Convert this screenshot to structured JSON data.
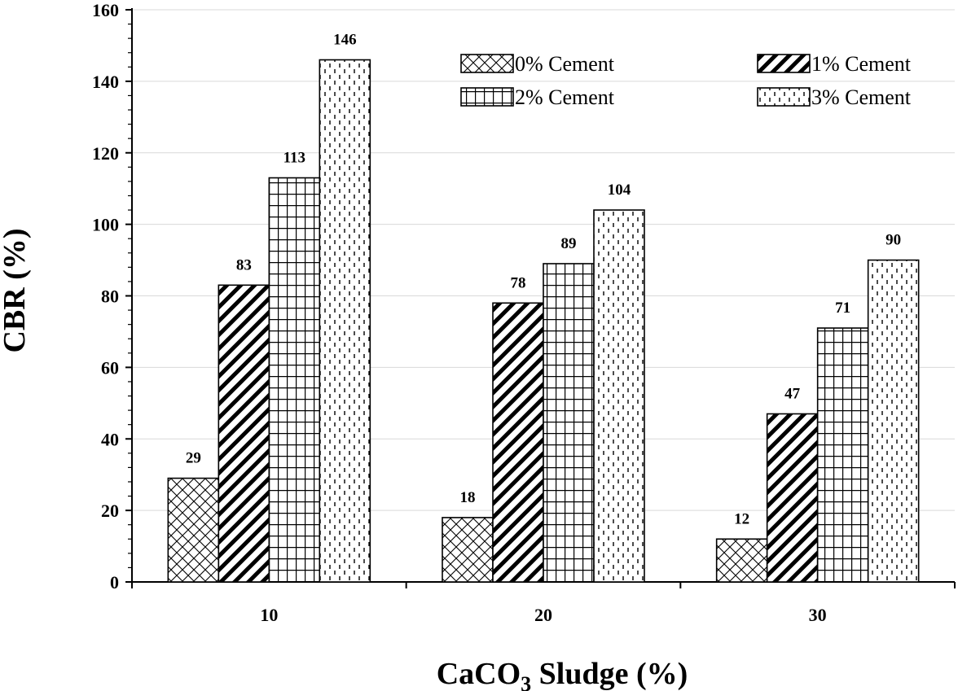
{
  "chart_data": {
    "type": "bar",
    "title": "",
    "xlabel": "CaCO3 Sludge (%)",
    "xlabel_parts": {
      "base": "CaCO",
      "subscript": "3",
      "rest": " Sludge (%)"
    },
    "ylabel": "CBR (%)",
    "categories": [
      "10",
      "20",
      "30"
    ],
    "series": [
      {
        "name": "0% Cement",
        "values": [
          29,
          18,
          12
        ],
        "pattern": "crosshatch"
      },
      {
        "name": "1% Cement",
        "values": [
          83,
          78,
          47
        ],
        "pattern": "diagonal"
      },
      {
        "name": "2% Cement",
        "values": [
          113,
          89,
          71
        ],
        "pattern": "grid"
      },
      {
        "name": "3% Cement",
        "values": [
          146,
          104,
          90
        ],
        "pattern": "dotted-dashes"
      }
    ],
    "data_labels": [
      [
        "29",
        "18",
        "12"
      ],
      [
        "83",
        "78",
        "47"
      ],
      [
        "113",
        "89",
        "71"
      ],
      [
        "146",
        "104",
        "90"
      ]
    ],
    "ylim": [
      0,
      160
    ],
    "yticks": [
      0,
      20,
      40,
      60,
      80,
      100,
      120,
      140,
      160
    ],
    "grid": true,
    "legend_position": "top-right",
    "colors": {
      "bar_fill": "#ffffff",
      "bar_stroke": "#000000",
      "grid": "#d9d9d9"
    }
  }
}
